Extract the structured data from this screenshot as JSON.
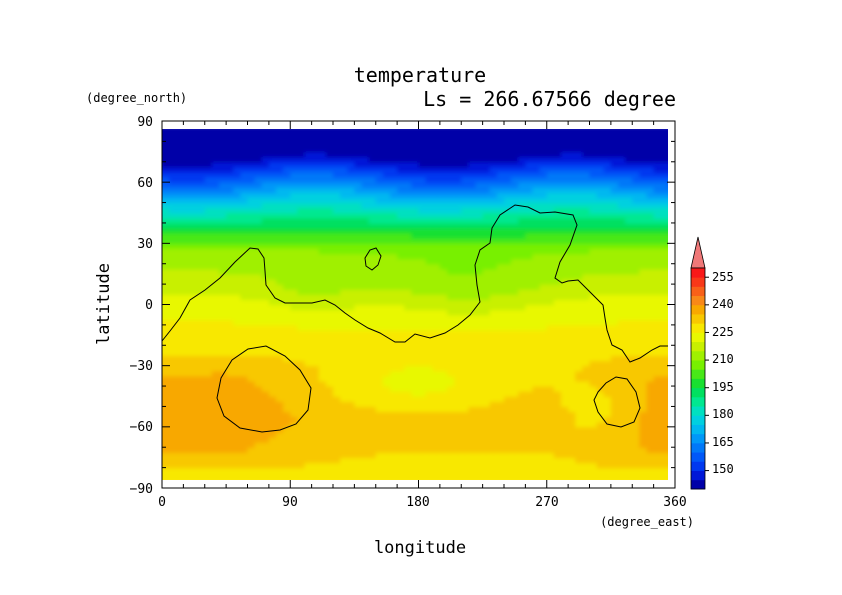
{
  "chart_data": {
    "type": "heatmap",
    "title": "temperature",
    "subtitle": "Ls = 266.67566 degree",
    "xlabel": "longitude",
    "ylabel": "latitude",
    "x_units": "(degree_east)",
    "y_units": "(degree_north)",
    "xlim": [
      0,
      360
    ],
    "ylim": [
      -90,
      90
    ],
    "data_extent": {
      "lon": [
        0,
        355
      ],
      "lat": [
        -85,
        85
      ]
    },
    "x_ticks": [
      "0",
      "90",
      "180",
      "270",
      "360"
    ],
    "y_ticks": [
      "90",
      "60",
      "30",
      "0",
      "−30",
      "−60",
      "−90"
    ],
    "colorbar": {
      "levels": [
        140,
        145,
        150,
        155,
        160,
        165,
        170,
        175,
        180,
        185,
        190,
        195,
        200,
        205,
        210,
        215,
        220,
        225,
        230,
        235,
        240,
        245,
        250,
        255,
        260
      ],
      "colors": [
        "#0000a8",
        "#0018d8",
        "#0038f0",
        "#0058f8",
        "#0078f8",
        "#0098f8",
        "#00b8f0",
        "#00d0e0",
        "#00e0c0",
        "#00e890",
        "#00e060",
        "#18e030",
        "#48e818",
        "#78f000",
        "#a0f000",
        "#c8f000",
        "#e8f800",
        "#f8e800",
        "#f8c800",
        "#f8a800",
        "#f88818",
        "#f86018",
        "#f83818",
        "#f81818"
      ],
      "extend_color": "#f07878",
      "tick_labels": [
        "255",
        "240",
        "225",
        "210",
        "195",
        "180",
        "165",
        "150"
      ]
    }
  }
}
